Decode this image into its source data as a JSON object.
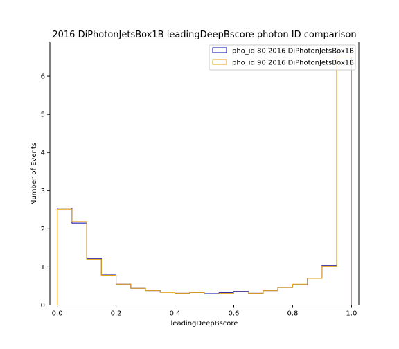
{
  "chart_data": {
    "type": "histogram",
    "title": "2016 DiPhotonJetsBox1B leadingDeepBscore photon ID comparison",
    "xlabel": "leadingDeepBscore",
    "ylabel": "Number of Events",
    "xlim": [
      -0.025,
      1.025
    ],
    "ylim": [
      0,
      6.9
    ],
    "xticks": [
      0.0,
      0.2,
      0.4,
      0.6,
      0.8,
      1.0
    ],
    "xtick_labels": [
      "0.0",
      "0.2",
      "0.4",
      "0.6",
      "0.8",
      "1.0"
    ],
    "yticks": [
      0,
      1,
      2,
      3,
      4,
      5,
      6
    ],
    "ytick_labels": [
      "0",
      "1",
      "2",
      "3",
      "4",
      "5",
      "6"
    ],
    "bin_edges": [
      0.0,
      0.05,
      0.1,
      0.15,
      0.2,
      0.25,
      0.3,
      0.35,
      0.4,
      0.45,
      0.5,
      0.55,
      0.6,
      0.65,
      0.7,
      0.75,
      0.8,
      0.85,
      0.9,
      0.95,
      1.0
    ],
    "legend_position": "upper right",
    "series": [
      {
        "name": "pho_id 80 2016 DiPhotonJetsBox1B",
        "color": "#0000aa",
        "values": [
          2.54,
          2.15,
          1.22,
          0.79,
          0.55,
          0.44,
          0.38,
          0.34,
          0.31,
          0.33,
          0.3,
          0.33,
          0.36,
          0.31,
          0.38,
          0.46,
          0.53,
          0.7,
          1.04,
          6.5
        ]
      },
      {
        "name": "pho_id 90 2016 DiPhotonJetsBox1B",
        "color": "#e8a317",
        "values": [
          2.51,
          2.19,
          1.2,
          0.78,
          0.55,
          0.44,
          0.38,
          0.33,
          0.31,
          0.33,
          0.29,
          0.31,
          0.35,
          0.31,
          0.38,
          0.46,
          0.55,
          0.7,
          1.02,
          6.5
        ]
      }
    ]
  }
}
